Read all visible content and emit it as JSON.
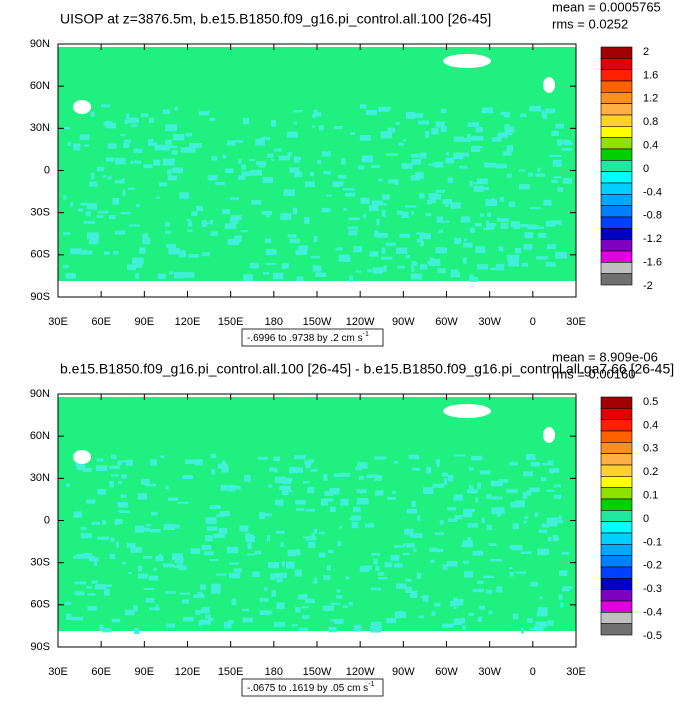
{
  "panels": [
    {
      "title": "UISOP at z=3876.5m, b.e15.B1850.f09_g16.pi_control.all.100 [26-45]",
      "stats": [
        "mean = 0.0005765",
        "rms = 0.0252"
      ],
      "lat_labels": [
        "90N",
        "60N",
        "30N",
        "0",
        "30S",
        "60S",
        "90S"
      ],
      "lon_labels": [
        "30E",
        "60E",
        "90E",
        "120E",
        "150E",
        "180",
        "150W",
        "120W",
        "90W",
        "60W",
        "30W",
        "0",
        "30E"
      ],
      "colorbar_labels": [
        "2",
        "1.6",
        "1.2",
        "0.8",
        "0.4",
        "0",
        "-0.4",
        "-0.8",
        "-1.2",
        "-1.6",
        "-2"
      ],
      "range_note": {
        "text": "-.6996 to .9738 by .2 cm s",
        "superscript": "-1"
      }
    },
    {
      "title": "b.e15.B1850.f09_g16.pi_control.all.100 [26-45] - b.e15.B1850.f09_g16.pi_control.all.ga7.66 [26-45]",
      "stats": [
        "mean = 8.909e-06",
        "rms = 0.00160"
      ],
      "lat_labels": [
        "90N",
        "60N",
        "30N",
        "0",
        "30S",
        "60S",
        "90S"
      ],
      "lon_labels": [
        "30E",
        "60E",
        "90E",
        "120E",
        "150E",
        "180",
        "150W",
        "120W",
        "90W",
        "60W",
        "30W",
        "0",
        "30E"
      ],
      "colorbar_labels": [
        "0.5",
        "0.4",
        "0.3",
        "0.2",
        "0.1",
        "0",
        "-0.1",
        "-0.2",
        "-0.3",
        "-0.4",
        "-0.5"
      ],
      "range_note": {
        "text": "-.0675 to .1619 by .05 cm s",
        "superscript": "-1"
      }
    }
  ]
}
